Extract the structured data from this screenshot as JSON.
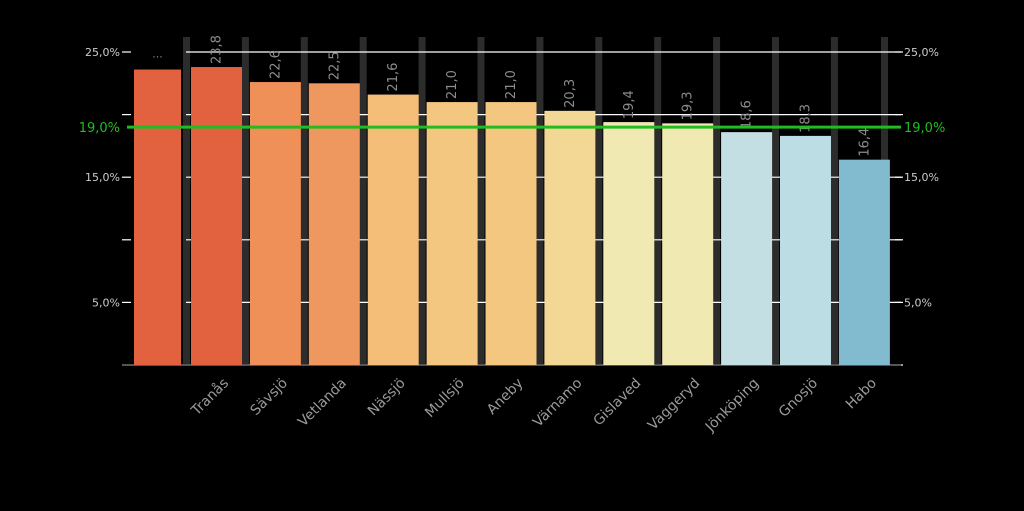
{
  "chart_data": {
    "type": "bar",
    "title": "",
    "xlabel": "",
    "ylabel": "",
    "ylim": [
      0,
      25
    ],
    "y_ticks": [
      {
        "value": 25,
        "label": "25,0%"
      },
      {
        "value": 20,
        "label": ""
      },
      {
        "value": 15,
        "label": "15,0%"
      },
      {
        "value": 10,
        "label": ""
      },
      {
        "value": 5,
        "label": "5,0%"
      },
      {
        "value": 0,
        "label": ""
      }
    ],
    "reference_line": {
      "value": 19,
      "label": "19,0%",
      "color": "#22bb22"
    },
    "first_bar": {
      "value": 23.6,
      "label": "...",
      "color": "#e2613f"
    },
    "categories": [
      "Tranås",
      "Sävsjö",
      "Vetlanda",
      "Nässjö",
      "Mullsjö",
      "Aneby",
      "Värnamo",
      "Gislaved",
      "Vaggeryd",
      "Jönköping",
      "Gnosjö",
      "Habo"
    ],
    "values": [
      23.8,
      22.6,
      22.5,
      21.6,
      21.0,
      21.0,
      20.3,
      19.4,
      19.3,
      18.6,
      18.3,
      16.4
    ],
    "value_labels": [
      "23,8",
      "22,6",
      "22,5",
      "21,6",
      "21,0",
      "21,0",
      "20,3",
      "19,4",
      "19,3",
      "18,6",
      "18,3",
      "16,4"
    ],
    "colors": [
      "#e2613f",
      "#ee9058",
      "#ee9860",
      "#f4bd78",
      "#f4c780",
      "#f4c780",
      "#f2d894",
      "#f0eab2",
      "#f0eab2",
      "#c4dfe4",
      "#bcdde3",
      "#82bbcf"
    ],
    "colors_meta": {
      "background": "#000000",
      "grid": "#ffffff",
      "separator": "#2c2c2c",
      "tick_label": "#cccccc",
      "category_label": "#9a9a9a",
      "value_label": "#8c8c8c"
    }
  }
}
